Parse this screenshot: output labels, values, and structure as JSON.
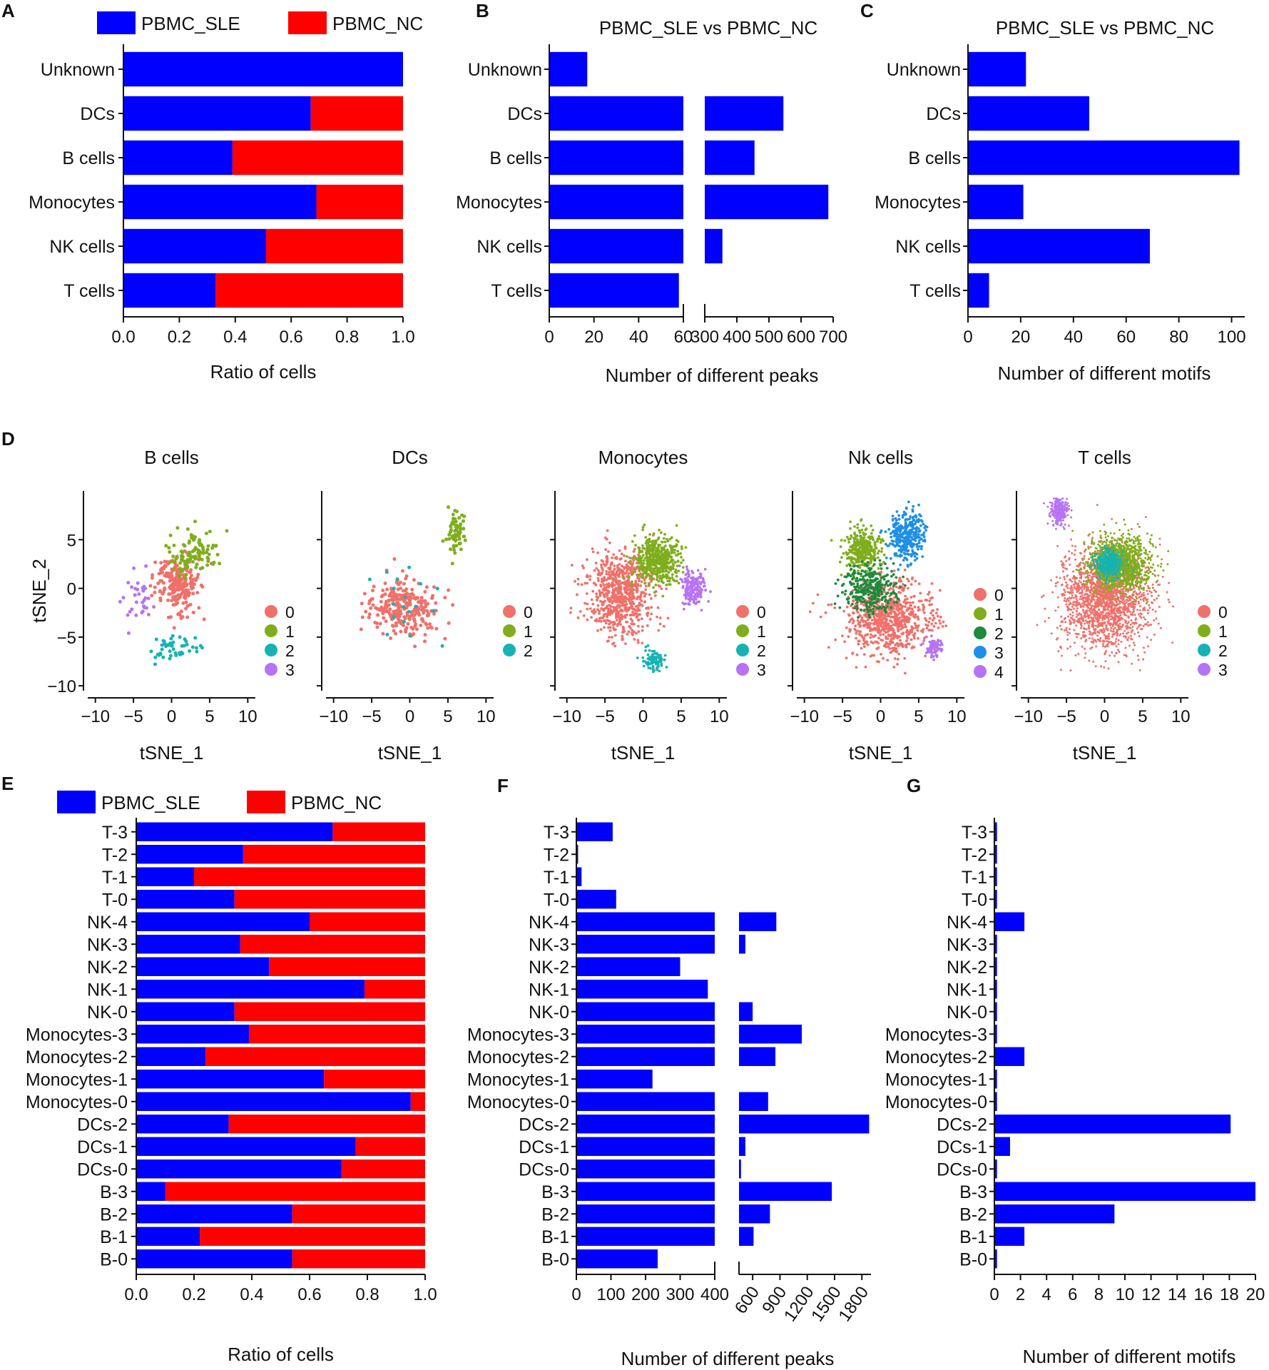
{
  "colors": {
    "sle": "#0000ff",
    "nc": "#ff0000"
  },
  "cluster_colors": {
    "3": [
      "#f0706a",
      "#7fae1d",
      "#16b2b3"
    ],
    "4": [
      "#f0706a",
      "#7fae1d",
      "#16b2b3",
      "#b673f4"
    ],
    "5": [
      "#f0706a",
      "#7fae1d",
      "#1d8a3c",
      "#1e8fe6",
      "#b673f4"
    ]
  },
  "chart_data": [
    {
      "id": "A",
      "panel_letter": "A",
      "type": "bar",
      "stacked": true,
      "legend": [
        "PBMC_SLE",
        "PBMC_NC"
      ],
      "categories": [
        "Unknown",
        "DCs",
        "B cells",
        "Monocytes",
        "NK cells",
        "T cells"
      ],
      "series": [
        {
          "name": "PBMC_SLE",
          "values": [
            1.0,
            0.67,
            0.39,
            0.69,
            0.51,
            0.33
          ]
        },
        {
          "name": "PBMC_NC",
          "values": [
            0.0,
            0.33,
            0.61,
            0.31,
            0.49,
            0.67
          ]
        }
      ],
      "xlim": [
        0,
        1.0
      ],
      "xticks": [
        "0.0",
        "0.2",
        "0.4",
        "0.6",
        "0.8",
        "1.0"
      ],
      "xlabel": "Ratio of cells"
    },
    {
      "id": "B",
      "panel_letter": "B",
      "type": "bar",
      "title": "PBMC_SLE vs PBMC_NC",
      "categories": [
        "Unknown",
        "DCs",
        "B cells",
        "Monocytes",
        "NK cells",
        "T cells"
      ],
      "values": [
        17,
        545,
        455,
        685,
        355,
        58
      ],
      "axis_break": {
        "low": [
          0,
          60
        ],
        "high": [
          300,
          700
        ]
      },
      "xtick_values": [
        0,
        20,
        40,
        60,
        300,
        400,
        500,
        600,
        700
      ],
      "xticks": [
        "0",
        "20",
        "40",
        "60",
        "300",
        "400",
        "500",
        "600",
        "700"
      ],
      "xlabel": "Number of different peaks"
    },
    {
      "id": "C",
      "panel_letter": "C",
      "type": "bar",
      "title": "PBMC_SLE vs PBMC_NC",
      "categories": [
        "Unknown",
        "DCs",
        "B cells",
        "Monocytes",
        "NK cells",
        "T cells"
      ],
      "values": [
        22,
        46,
        103,
        21,
        69,
        8
      ],
      "xlim": [
        0,
        105
      ],
      "xtick_values": [
        0,
        20,
        40,
        60,
        80,
        100
      ],
      "xticks": [
        "0",
        "20",
        "40",
        "60",
        "80",
        "100"
      ],
      "xlabel": "Number of different motifs"
    },
    {
      "id": "D",
      "panel_letter": "D",
      "type": "scatter",
      "xlabel": "tSNE_1",
      "ylabel": "tSNE_2",
      "xtick_values": [
        -10,
        -5,
        0,
        5,
        10
      ],
      "xticks": [
        "−10",
        "−5",
        "0",
        "5",
        "10"
      ],
      "ytick_values": [
        5,
        0,
        -5,
        -10
      ],
      "yticks": [
        "5",
        "0",
        "−5",
        "−10"
      ],
      "xlim": [
        -11,
        11
      ],
      "ylim": [
        -10.5,
        10
      ],
      "subplots": [
        {
          "title": "B cells",
          "legend": [
            "0",
            "1",
            "2",
            "3"
          ],
          "n": 420,
          "clusters": [
            {
              "label": "0",
              "cx": 0.5,
              "cy": 0.5,
              "sx": 2.8,
              "sy": 2.8,
              "w": 0.55
            },
            {
              "label": "1",
              "cx": 3.0,
              "cy": 3.5,
              "sx": 3.2,
              "sy": 2.2,
              "w": 0.25
            },
            {
              "label": "2",
              "cx": 1.0,
              "cy": -6.2,
              "sx": 3.5,
              "sy": 1.2,
              "w": 0.12
            },
            {
              "label": "3",
              "cx": -4.5,
              "cy": -1.0,
              "sx": 2.2,
              "sy": 2.5,
              "w": 0.08
            }
          ]
        },
        {
          "title": "DCs",
          "legend": [
            "0",
            "1",
            "2"
          ],
          "n": 360,
          "clusters": [
            {
              "label": "0",
              "cx": -1.0,
              "cy": -2.0,
              "sx": 4.2,
              "sy": 2.6,
              "w": 0.75
            },
            {
              "label": "1",
              "cx": 6.0,
              "cy": 5.5,
              "sx": 1.2,
              "sy": 2.0,
              "w": 0.2
            },
            {
              "label": "2",
              "cx": 0.5,
              "cy": -1.0,
              "sx": 5.0,
              "sy": 3.5,
              "w": 0.05
            }
          ]
        },
        {
          "title": "Monocytes",
          "legend": [
            "0",
            "1",
            "2",
            "3"
          ],
          "n": 1500,
          "clusters": [
            {
              "label": "0",
              "cx": -3.0,
              "cy": -0.5,
              "sx": 3.8,
              "sy": 4.0,
              "w": 0.5
            },
            {
              "label": "1",
              "cx": 2.0,
              "cy": 3.0,
              "sx": 2.6,
              "sy": 2.2,
              "w": 0.32
            },
            {
              "label": "2",
              "cx": 1.5,
              "cy": -7.5,
              "sx": 1.2,
              "sy": 1.0,
              "w": 0.06
            },
            {
              "label": "3",
              "cx": 6.5,
              "cy": 0.0,
              "sx": 1.4,
              "sy": 1.6,
              "w": 0.12
            }
          ]
        },
        {
          "title": "Nk cells",
          "legend": [
            "0",
            "1",
            "2",
            "3",
            "4"
          ],
          "n": 1800,
          "clusters": [
            {
              "label": "0",
              "cx": 1.0,
              "cy": -3.0,
              "sx": 5.0,
              "sy": 3.5,
              "w": 0.42
            },
            {
              "label": "1",
              "cx": -2.5,
              "cy": 4.0,
              "sx": 2.2,
              "sy": 2.0,
              "w": 0.18
            },
            {
              "label": "2",
              "cx": -1.5,
              "cy": 0.0,
              "sx": 3.2,
              "sy": 2.2,
              "w": 0.18
            },
            {
              "label": "3",
              "cx": 3.5,
              "cy": 5.5,
              "sx": 2.2,
              "sy": 2.5,
              "w": 0.18
            },
            {
              "label": "4",
              "cx": 7.0,
              "cy": -6.0,
              "sx": 1.0,
              "sy": 1.0,
              "w": 0.04
            }
          ]
        },
        {
          "title": "T cells",
          "legend": [
            "0",
            "1",
            "2",
            "3"
          ],
          "n": 3600,
          "clusters": [
            {
              "label": "0",
              "cx": 0.0,
              "cy": -1.0,
              "sx": 5.2,
              "sy": 4.5,
              "w": 0.5
            },
            {
              "label": "1",
              "cx": 2.0,
              "cy": 2.5,
              "sx": 3.5,
              "sy": 2.6,
              "w": 0.33
            },
            {
              "label": "2",
              "cx": 0.5,
              "cy": 2.5,
              "sx": 1.5,
              "sy": 1.2,
              "w": 0.1
            },
            {
              "label": "3",
              "cx": -6.0,
              "cy": 8.0,
              "sx": 1.0,
              "sy": 1.2,
              "w": 0.07
            }
          ]
        }
      ]
    },
    {
      "id": "E",
      "panel_letter": "E",
      "type": "bar",
      "stacked": true,
      "legend": [
        "PBMC_SLE",
        "PBMC_NC"
      ],
      "categories": [
        "T-3",
        "T-2",
        "T-1",
        "T-0",
        "NK-4",
        "NK-3",
        "NK-2",
        "NK-1",
        "NK-0",
        "Monocytes-3",
        "Monocytes-2",
        "Monocytes-1",
        "Monocytes-0",
        "DCs-2",
        "DCs-1",
        "DCs-0",
        "B-3",
        "B-2",
        "B-1",
        "B-0"
      ],
      "series": [
        {
          "name": "PBMC_SLE",
          "values": [
            0.68,
            0.37,
            0.2,
            0.34,
            0.6,
            0.36,
            0.46,
            0.79,
            0.34,
            0.39,
            0.24,
            0.65,
            0.95,
            0.32,
            0.76,
            0.71,
            0.1,
            0.54,
            0.22,
            0.54
          ]
        },
        {
          "name": "PBMC_NC",
          "values": [
            0.32,
            0.63,
            0.8,
            0.66,
            0.4,
            0.64,
            0.54,
            0.21,
            0.66,
            0.61,
            0.76,
            0.35,
            0.05,
            0.68,
            0.24,
            0.29,
            0.9,
            0.46,
            0.78,
            0.46
          ]
        }
      ],
      "xlim": [
        0,
        1.0
      ],
      "xticks": [
        "0.0",
        "0.2",
        "0.4",
        "0.6",
        "0.8",
        "1.0"
      ],
      "xlabel": "Ratio of cells"
    },
    {
      "id": "F",
      "panel_letter": "F",
      "type": "bar",
      "categories": [
        "T-3",
        "T-2",
        "T-1",
        "T-0",
        "NK-4",
        "NK-3",
        "NK-2",
        "NK-1",
        "NK-0",
        "Monocytes-3",
        "Monocytes-2",
        "Monocytes-1",
        "Monocytes-0",
        "DCs-2",
        "DCs-1",
        "DCs-0",
        "B-3",
        "B-2",
        "B-1",
        "B-0"
      ],
      "values": [
        105,
        5,
        15,
        115,
        860,
        520,
        300,
        380,
        600,
        1140,
        850,
        220,
        770,
        1880,
        520,
        450,
        1470,
        790,
        610,
        235
      ],
      "axis_break": {
        "low": [
          0,
          400
        ],
        "high": [
          450,
          1900
        ]
      },
      "xtick_values": [
        0,
        100,
        200,
        300,
        400,
        600,
        900,
        1200,
        1500,
        1800
      ],
      "xticks": [
        "0",
        "100",
        "200",
        "300",
        "400",
        "600",
        "900",
        "1200",
        "1500",
        "1800"
      ],
      "xlabel": "Number of different peaks"
    },
    {
      "id": "G",
      "panel_letter": "G",
      "type": "bar",
      "categories": [
        "T-3",
        "T-2",
        "T-1",
        "T-0",
        "NK-4",
        "NK-3",
        "NK-2",
        "NK-1",
        "NK-0",
        "Monocytes-3",
        "Monocytes-2",
        "Monocytes-1",
        "Monocytes-0",
        "DCs-2",
        "DCs-1",
        "DCs-0",
        "B-3",
        "B-2",
        "B-1",
        "B-0"
      ],
      "values": [
        0.2,
        0.2,
        0.2,
        0.2,
        2.3,
        0.2,
        0.2,
        0.2,
        0.2,
        0.2,
        2.3,
        0.2,
        0.2,
        18.1,
        1.2,
        0.2,
        20,
        9.2,
        2.3,
        0.2
      ],
      "xlim": [
        0,
        20
      ],
      "xtick_values": [
        0,
        2,
        4,
        6,
        8,
        10,
        12,
        14,
        16,
        18,
        20
      ],
      "xticks": [
        "0",
        "2",
        "4",
        "6",
        "8",
        "10",
        "12",
        "14",
        "16",
        "18",
        "20"
      ],
      "xlabel": "Number of different motifs"
    }
  ]
}
